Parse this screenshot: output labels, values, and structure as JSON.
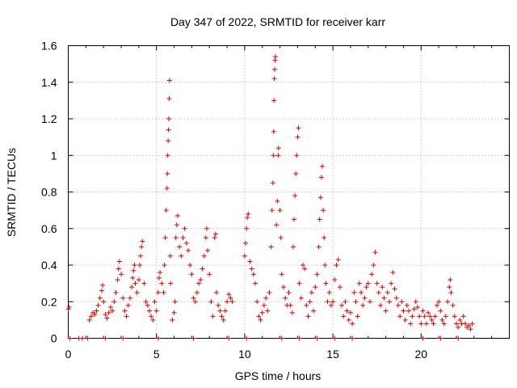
{
  "chart_data": {
    "type": "scatter",
    "title": "Day 347 of 2022, SRMTID for receiver karr",
    "xlabel": "GPS time / hours",
    "ylabel": "SRMTID / TECUs",
    "xlim": [
      0,
      25
    ],
    "ylim": [
      0,
      1.6
    ],
    "xticks": [
      "0",
      "5",
      "10",
      "15",
      "20"
    ],
    "yticks": [
      "0",
      "0.2",
      "0.4",
      "0.6",
      "0.8",
      "1",
      "1.2",
      "1.4",
      "1.6"
    ],
    "grid": true,
    "marker": "plus",
    "color": "#e00000",
    "series": [
      {
        "name": "SRMTID",
        "points": [
          [
            0.0,
            0.16
          ],
          [
            0.05,
            0.17
          ],
          [
            0.1,
            0.0
          ],
          [
            0.6,
            0.0
          ],
          [
            0.8,
            0.0
          ],
          [
            1.1,
            0.0
          ],
          [
            2.1,
            0.0
          ],
          [
            3.1,
            0.0
          ],
          [
            5.1,
            0.0
          ],
          [
            7.1,
            0.0
          ],
          [
            9.1,
            0.0
          ],
          [
            10.1,
            0.0
          ],
          [
            12.1,
            0.0
          ],
          [
            13.1,
            0.0
          ],
          [
            14.1,
            0.0
          ],
          [
            15.1,
            0.0
          ],
          [
            16.1,
            0.0
          ],
          [
            20.1,
            0.0
          ],
          [
            21.1,
            0.0
          ],
          [
            22.1,
            0.0
          ],
          [
            1.2,
            0.1
          ],
          [
            1.3,
            0.12
          ],
          [
            1.4,
            0.14
          ],
          [
            1.5,
            0.13
          ],
          [
            1.6,
            0.15
          ],
          [
            1.7,
            0.18
          ],
          [
            1.8,
            0.22
          ],
          [
            1.9,
            0.26
          ],
          [
            1.95,
            0.29
          ],
          [
            2.0,
            0.2
          ],
          [
            2.1,
            0.13
          ],
          [
            2.2,
            0.11
          ],
          [
            2.3,
            0.14
          ],
          [
            2.4,
            0.17
          ],
          [
            2.5,
            0.15
          ],
          [
            2.6,
            0.2
          ],
          [
            2.7,
            0.25
          ],
          [
            2.8,
            0.32
          ],
          [
            2.85,
            0.38
          ],
          [
            2.9,
            0.42
          ],
          [
            3.0,
            0.35
          ],
          [
            3.1,
            0.22
          ],
          [
            3.2,
            0.15
          ],
          [
            3.3,
            0.12
          ],
          [
            3.4,
            0.18
          ],
          [
            3.5,
            0.22
          ],
          [
            3.6,
            0.28
          ],
          [
            3.65,
            0.33
          ],
          [
            3.7,
            0.37
          ],
          [
            3.75,
            0.4
          ],
          [
            3.8,
            0.3
          ],
          [
            3.9,
            0.25
          ],
          [
            4.0,
            0.32
          ],
          [
            4.05,
            0.4
          ],
          [
            4.1,
            0.45
          ],
          [
            4.15,
            0.5
          ],
          [
            4.2,
            0.53
          ],
          [
            4.3,
            0.3
          ],
          [
            4.4,
            0.2
          ],
          [
            4.5,
            0.18
          ],
          [
            4.6,
            0.15
          ],
          [
            4.7,
            0.12
          ],
          [
            4.8,
            0.1
          ],
          [
            4.9,
            0.2
          ],
          [
            5.0,
            0.15
          ],
          [
            5.1,
            0.25
          ],
          [
            5.15,
            0.33
          ],
          [
            5.2,
            0.36
          ],
          [
            5.3,
            0.3
          ],
          [
            5.4,
            0.25
          ],
          [
            5.45,
            0.4
          ],
          [
            5.5,
            0.55
          ],
          [
            5.55,
            0.7
          ],
          [
            5.6,
            0.82
          ],
          [
            5.62,
            0.9
          ],
          [
            5.64,
            1.0
          ],
          [
            5.66,
            1.08
          ],
          [
            5.68,
            1.14
          ],
          [
            5.7,
            1.2
          ],
          [
            5.72,
            1.31
          ],
          [
            5.74,
            1.41
          ],
          [
            5.78,
            0.45
          ],
          [
            5.8,
            0.3
          ],
          [
            5.9,
            0.1
          ],
          [
            6.0,
            0.14
          ],
          [
            6.05,
            0.2
          ],
          [
            6.1,
            0.55
          ],
          [
            6.15,
            0.62
          ],
          [
            6.2,
            0.67
          ],
          [
            6.3,
            0.5
          ],
          [
            6.4,
            0.45
          ],
          [
            6.5,
            0.55
          ],
          [
            6.6,
            0.6
          ],
          [
            6.7,
            0.52
          ],
          [
            6.8,
            0.48
          ],
          [
            6.9,
            0.4
          ],
          [
            7.0,
            0.35
          ],
          [
            7.1,
            0.22
          ],
          [
            7.2,
            0.2
          ],
          [
            7.3,
            0.25
          ],
          [
            7.4,
            0.3
          ],
          [
            7.5,
            0.32
          ],
          [
            7.6,
            0.38
          ],
          [
            7.7,
            0.45
          ],
          [
            7.8,
            0.55
          ],
          [
            7.85,
            0.6
          ],
          [
            7.9,
            0.48
          ],
          [
            8.0,
            0.35
          ],
          [
            8.1,
            0.2
          ],
          [
            8.2,
            0.12
          ],
          [
            8.3,
            0.55
          ],
          [
            8.35,
            0.57
          ],
          [
            8.4,
            0.25
          ],
          [
            8.5,
            0.18
          ],
          [
            8.6,
            0.15
          ],
          [
            8.7,
            0.12
          ],
          [
            8.8,
            0.1
          ],
          [
            8.9,
            0.15
          ],
          [
            9.0,
            0.2
          ],
          [
            9.1,
            0.24
          ],
          [
            9.2,
            0.22
          ],
          [
            9.3,
            0.2
          ],
          [
            10.0,
            0.45
          ],
          [
            10.05,
            0.52
          ],
          [
            10.1,
            0.6
          ],
          [
            10.15,
            0.66
          ],
          [
            10.2,
            0.68
          ],
          [
            10.3,
            0.42
          ],
          [
            10.4,
            0.38
          ],
          [
            10.5,
            0.35
          ],
          [
            10.6,
            0.3
          ],
          [
            10.7,
            0.2
          ],
          [
            10.8,
            0.12
          ],
          [
            10.9,
            0.1
          ],
          [
            11.0,
            0.14
          ],
          [
            11.1,
            0.18
          ],
          [
            11.2,
            0.22
          ],
          [
            11.3,
            0.15
          ],
          [
            11.4,
            0.25
          ],
          [
            11.5,
            0.5
          ],
          [
            11.55,
            0.7
          ],
          [
            11.6,
            0.85
          ],
          [
            11.62,
            1.0
          ],
          [
            11.64,
            1.13
          ],
          [
            11.66,
            1.3
          ],
          [
            11.68,
            1.42
          ],
          [
            11.7,
            1.47
          ],
          [
            11.72,
            1.52
          ],
          [
            11.74,
            1.54
          ],
          [
            11.8,
            0.62
          ],
          [
            11.85,
            0.75
          ],
          [
            11.9,
            1.0
          ],
          [
            11.92,
            1.04
          ],
          [
            12.0,
            0.7
          ],
          [
            12.05,
            0.55
          ],
          [
            12.1,
            0.35
          ],
          [
            12.2,
            0.28
          ],
          [
            12.3,
            0.22
          ],
          [
            12.4,
            0.18
          ],
          [
            12.5,
            0.25
          ],
          [
            12.6,
            0.18
          ],
          [
            12.7,
            0.14
          ],
          [
            12.75,
            0.5
          ],
          [
            12.8,
            0.65
          ],
          [
            12.85,
            0.78
          ],
          [
            12.9,
            0.9
          ],
          [
            12.95,
            1.0
          ],
          [
            13.0,
            1.1
          ],
          [
            13.05,
            1.15
          ],
          [
            13.1,
            0.3
          ],
          [
            13.2,
            0.22
          ],
          [
            13.3,
            0.4
          ],
          [
            13.4,
            0.38
          ],
          [
            13.5,
            0.18
          ],
          [
            13.6,
            0.12
          ],
          [
            13.7,
            0.2
          ],
          [
            13.8,
            0.25
          ],
          [
            13.9,
            0.15
          ],
          [
            14.0,
            0.28
          ],
          [
            14.1,
            0.35
          ],
          [
            14.2,
            0.5
          ],
          [
            14.25,
            0.65
          ],
          [
            14.3,
            0.77
          ],
          [
            14.35,
            0.88
          ],
          [
            14.4,
            0.94
          ],
          [
            14.45,
            0.7
          ],
          [
            14.5,
            0.55
          ],
          [
            14.55,
            0.4
          ],
          [
            14.6,
            0.3
          ],
          [
            14.7,
            0.2
          ],
          [
            14.8,
            0.25
          ],
          [
            14.9,
            0.18
          ],
          [
            15.0,
            0.2
          ],
          [
            15.1,
            0.32
          ],
          [
            15.2,
            0.4
          ],
          [
            15.3,
            0.43
          ],
          [
            15.4,
            0.28
          ],
          [
            15.5,
            0.18
          ],
          [
            15.6,
            0.12
          ],
          [
            15.7,
            0.2
          ],
          [
            15.8,
            0.15
          ],
          [
            15.9,
            0.1
          ],
          [
            16.0,
            0.14
          ],
          [
            16.1,
            0.08
          ],
          [
            16.2,
            0.25
          ],
          [
            16.3,
            0.2
          ],
          [
            16.4,
            0.12
          ],
          [
            16.5,
            0.3
          ],
          [
            16.6,
            0.25
          ],
          [
            16.7,
            0.18
          ],
          [
            16.8,
            0.22
          ],
          [
            16.9,
            0.28
          ],
          [
            17.0,
            0.3
          ],
          [
            17.1,
            0.2
          ],
          [
            17.2,
            0.35
          ],
          [
            17.3,
            0.4
          ],
          [
            17.4,
            0.47
          ],
          [
            17.5,
            0.3
          ],
          [
            17.6,
            0.25
          ],
          [
            17.7,
            0.18
          ],
          [
            17.8,
            0.28
          ],
          [
            17.9,
            0.22
          ],
          [
            18.0,
            0.15
          ],
          [
            18.1,
            0.25
          ],
          [
            18.2,
            0.2
          ],
          [
            18.3,
            0.3
          ],
          [
            18.4,
            0.36
          ],
          [
            18.5,
            0.27
          ],
          [
            18.6,
            0.22
          ],
          [
            18.7,
            0.18
          ],
          [
            18.8,
            0.12
          ],
          [
            18.9,
            0.2
          ],
          [
            19.0,
            0.15
          ],
          [
            19.1,
            0.1
          ],
          [
            19.2,
            0.18
          ],
          [
            19.3,
            0.15
          ],
          [
            19.4,
            0.08
          ],
          [
            19.5,
            0.12
          ],
          [
            19.6,
            0.16
          ],
          [
            19.7,
            0.2
          ],
          [
            19.8,
            0.17
          ],
          [
            19.9,
            0.12
          ],
          [
            20.0,
            0.08
          ],
          [
            20.1,
            0.15
          ],
          [
            20.2,
            0.12
          ],
          [
            20.3,
            0.08
          ],
          [
            20.4,
            0.14
          ],
          [
            20.5,
            0.12
          ],
          [
            20.6,
            0.1
          ],
          [
            20.7,
            0.08
          ],
          [
            20.8,
            0.12
          ],
          [
            20.9,
            0.18
          ],
          [
            21.0,
            0.2
          ],
          [
            21.1,
            0.15
          ],
          [
            21.2,
            0.1
          ],
          [
            21.3,
            0.08
          ],
          [
            21.4,
            0.12
          ],
          [
            21.5,
            0.2
          ],
          [
            21.6,
            0.28
          ],
          [
            21.65,
            0.32
          ],
          [
            21.7,
            0.25
          ],
          [
            21.8,
            0.18
          ],
          [
            21.9,
            0.12
          ],
          [
            22.0,
            0.08
          ],
          [
            22.1,
            0.06
          ],
          [
            22.2,
            0.1
          ],
          [
            22.3,
            0.08
          ],
          [
            22.4,
            0.12
          ],
          [
            22.5,
            0.08
          ],
          [
            22.6,
            0.06
          ],
          [
            22.7,
            0.07
          ],
          [
            22.8,
            0.05
          ],
          [
            22.9,
            0.08
          ]
        ]
      }
    ]
  }
}
